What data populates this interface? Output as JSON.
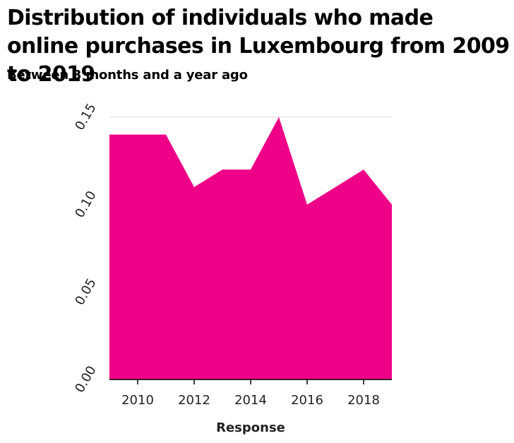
{
  "chart_data": {
    "type": "area",
    "title": "Distribution of individuals who made online purchases in Luxembourg from 2009 to 2019",
    "subtitle": "Between 3 months and a year ago",
    "xlabel": "Response",
    "ylabel": "",
    "x": [
      2009,
      2010,
      2011,
      2012,
      2013,
      2014,
      2015,
      2016,
      2017,
      2018,
      2019
    ],
    "series": [
      {
        "values": [
          0.14,
          0.14,
          0.14,
          0.11,
          0.12,
          0.12,
          0.15,
          0.1,
          0.11,
          0.12,
          0.1
        ]
      }
    ],
    "xlim": [
      2009,
      2019
    ],
    "ylim": [
      0,
      0.15
    ],
    "x_ticks": [
      {
        "value": 2010,
        "label": "2010"
      },
      {
        "value": 2012,
        "label": "2012"
      },
      {
        "value": 2014,
        "label": "2014"
      },
      {
        "value": 2016,
        "label": "2016"
      },
      {
        "value": 2018,
        "label": "2018"
      }
    ],
    "y_ticks": [
      {
        "value": 0,
        "label": "0.00"
      },
      {
        "value": 0.05,
        "label": "0.05"
      },
      {
        "value": 0.1,
        "label": "0.10"
      },
      {
        "value": 0.15,
        "label": "0.15"
      }
    ],
    "grid": "horizontal",
    "legend": "none",
    "colors": {
      "area": "#ee0088",
      "grid": "#d9d9d9",
      "axis": "#000000"
    }
  }
}
